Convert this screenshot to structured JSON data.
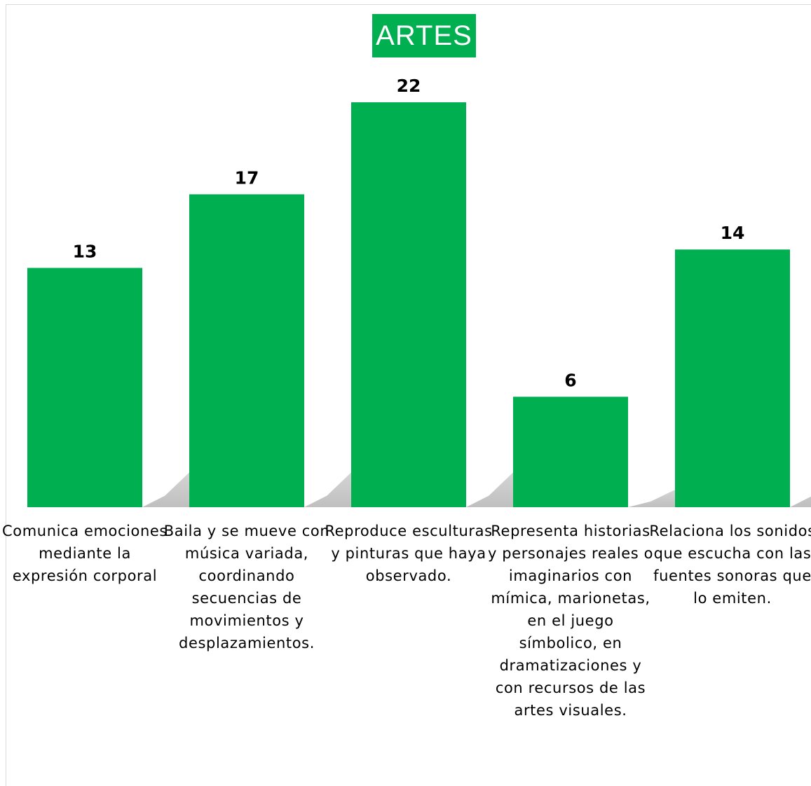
{
  "chart_data": {
    "type": "bar",
    "title": "ARTES",
    "categories": [
      "Comunica emociones mediante la expresión corporal",
      "Baila y se mueve con música variada, coordinando secuencias de movimientos y desplazamientos.",
      "Reproduce esculturas y pinturas que haya observado.",
      "Representa historias y personajes reales o imaginarios con mímica, marionetas, en el juego símbolico, en dramatizaciones y con recursos de las artes visuales.",
      "Relaciona los sonidos que escucha con las fuentes sonoras que lo emiten."
    ],
    "values": [
      13,
      17,
      22,
      6,
      14
    ],
    "data_labels": [
      "13",
      "17",
      "22",
      "6",
      "14"
    ],
    "ylim": [
      0,
      22
    ],
    "grid": false,
    "legend": "none",
    "xlabel": "",
    "ylabel": ""
  },
  "colors": {
    "bar": "#00b050",
    "title_bg": "#00b050",
    "title_text": "#ffffff",
    "label_text": "#000000",
    "shadow": "#c8c8c8"
  }
}
